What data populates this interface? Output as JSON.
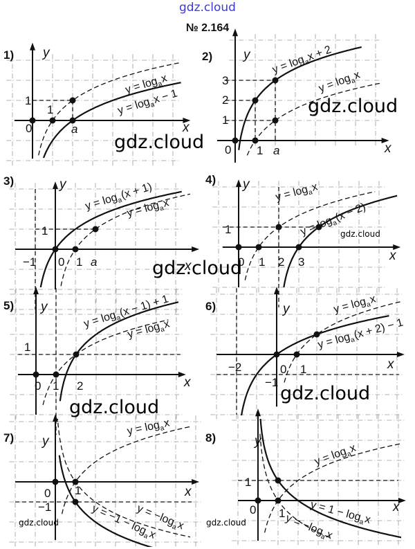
{
  "header": {
    "site_watermark": "gdz.cloud",
    "problem_number": "№ 2.164"
  },
  "watermarks": [
    "gdz.cloud",
    "gdz.cloud",
    "gdz.cloud",
    "gdz.cloud",
    "gdz.cloud",
    "gdz.cloud",
    "gdz.cloud",
    "gdz.cloud"
  ],
  "panels": [
    {
      "number": "1)",
      "axis_x": "x",
      "axis_y": "y",
      "ticks": [
        "1",
        "1",
        "0",
        "a"
      ],
      "formulas": [
        {
          "pre": "y = log",
          "sub": "a",
          "post": "x"
        },
        {
          "pre": "y = log",
          "sub": "a",
          "post": "x − 1"
        }
      ]
    },
    {
      "number": "2)",
      "axis_x": "x",
      "axis_y": "y",
      "ticks": [
        "3",
        "2",
        "1",
        "0",
        "1",
        "a"
      ],
      "formulas": [
        {
          "pre": "y = log",
          "sub": "a",
          "post": "x + 2"
        },
        {
          "pre": "y = log",
          "sub": "a",
          "post": "x"
        }
      ]
    },
    {
      "number": "3)",
      "axis_x": "x",
      "axis_y": "y",
      "ticks": [
        "1",
        "−1",
        "0",
        "1",
        "a"
      ],
      "formulas": [
        {
          "pre": "y = log",
          "sub": "a",
          "post": "(x + 1)"
        },
        {
          "pre": "y = log",
          "sub": "a",
          "post": "x"
        }
      ]
    },
    {
      "number": "4)",
      "axis_x": "x",
      "axis_y": "y",
      "ticks": [
        "1",
        "0",
        "1",
        "2",
        "3"
      ],
      "formulas": [
        {
          "pre": "y = log",
          "sub": "a",
          "post": "x"
        },
        {
          "pre": "y = log",
          "sub": "a",
          "post": "(x − 2)"
        }
      ]
    },
    {
      "number": "5)",
      "axis_x": "x",
      "axis_y": "y",
      "ticks": [
        "1",
        "0",
        "1",
        "2"
      ],
      "formulas": [
        {
          "pre": "y = log",
          "sub": "a",
          "post": "(x − 1) + 1"
        },
        {
          "pre": "y = log",
          "sub": "a",
          "post": "x"
        }
      ]
    },
    {
      "number": "6)",
      "axis_x": "x",
      "axis_y": "y",
      "ticks": [
        "−2",
        "0",
        "1",
        "−1"
      ],
      "formulas": [
        {
          "pre": "y = log",
          "sub": "a",
          "post": "x"
        },
        {
          "pre": "y = log",
          "sub": "a",
          "post": "(x + 2) − 1"
        }
      ]
    },
    {
      "number": "7)",
      "axis_x": "x",
      "axis_y": "y",
      "ticks": [
        "0",
        "1",
        "−1"
      ],
      "formulas": [
        {
          "pre": "y = log",
          "sub": "a",
          "post": "x"
        },
        {
          "pre": "y = −log",
          "sub": "a",
          "post": "x"
        },
        {
          "pre": "y = −1 − log",
          "sub": "a",
          "post": "x"
        }
      ]
    },
    {
      "number": "8)",
      "axis_x": "x",
      "axis_y": "y",
      "ticks": [
        "1",
        "0",
        "1"
      ],
      "formulas": [
        {
          "pre": "y = log",
          "sub": "a",
          "post": "x"
        },
        {
          "pre": "y = 1 − log",
          "sub": "a",
          "post": "x"
        },
        {
          "pre": "y = −log",
          "sub": "a",
          "post": "x"
        }
      ]
    }
  ]
}
